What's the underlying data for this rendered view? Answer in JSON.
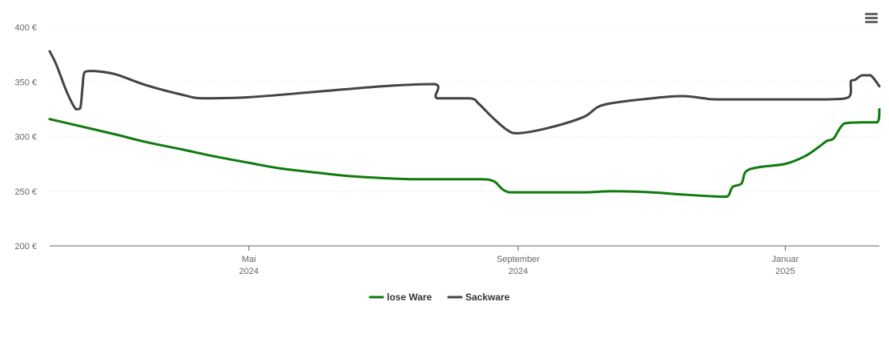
{
  "chart_data": {
    "type": "line",
    "ylim": [
      200,
      400
    ],
    "y_ticks": [
      {
        "value": 200,
        "label": "200 €"
      },
      {
        "value": 250,
        "label": "250 €"
      },
      {
        "value": 300,
        "label": "300 €"
      },
      {
        "value": 350,
        "label": "350 €"
      },
      {
        "value": 400,
        "label": "400 €"
      }
    ],
    "xlim": [
      "2024-01-31",
      "2025-02-13"
    ],
    "x_ticks": [
      {
        "date": "2024-05-01",
        "month": "Mai",
        "year": "2024"
      },
      {
        "date": "2024-09-01",
        "month": "September",
        "year": "2024"
      },
      {
        "date": "2025-01-01",
        "month": "Januar",
        "year": "2025"
      }
    ],
    "grid": true,
    "legend_position": "bottom-center",
    "series": [
      {
        "name": "lose Ware",
        "color": "#0f7a0f",
        "points": [
          [
            "2024-01-31",
            316
          ],
          [
            "2024-02-15",
            309
          ],
          [
            "2024-03-01",
            302
          ],
          [
            "2024-03-15",
            295
          ],
          [
            "2024-04-01",
            288
          ],
          [
            "2024-04-15",
            282
          ],
          [
            "2024-05-01",
            276
          ],
          [
            "2024-05-15",
            271
          ],
          [
            "2024-06-01",
            267
          ],
          [
            "2024-06-15",
            264
          ],
          [
            "2024-07-01",
            262
          ],
          [
            "2024-07-15",
            261
          ],
          [
            "2024-08-01",
            261
          ],
          [
            "2024-08-15",
            261
          ],
          [
            "2024-08-21",
            259
          ],
          [
            "2024-08-28",
            249
          ],
          [
            "2024-09-15",
            249
          ],
          [
            "2024-10-01",
            249
          ],
          [
            "2024-10-15",
            250
          ],
          [
            "2024-11-01",
            249
          ],
          [
            "2024-11-15",
            247
          ],
          [
            "2024-12-03",
            245
          ],
          [
            "2024-12-06",
            246
          ],
          [
            "2024-12-08",
            254
          ],
          [
            "2024-12-12",
            257
          ],
          [
            "2024-12-14",
            268
          ],
          [
            "2024-12-20",
            272
          ],
          [
            "2025-01-01",
            275
          ],
          [
            "2025-01-10",
            282
          ],
          [
            "2025-01-16",
            290
          ],
          [
            "2025-01-20",
            296
          ],
          [
            "2025-01-23",
            298
          ],
          [
            "2025-01-28",
            312
          ],
          [
            "2025-02-05",
            313
          ],
          [
            "2025-02-12",
            313
          ],
          [
            "2025-02-13",
            325
          ]
        ]
      },
      {
        "name": "Sackware",
        "color": "#444444",
        "points": [
          [
            "2024-01-31",
            378
          ],
          [
            "2024-02-03",
            366
          ],
          [
            "2024-02-08",
            340
          ],
          [
            "2024-02-12",
            325
          ],
          [
            "2024-02-14",
            326
          ],
          [
            "2024-02-15",
            345
          ],
          [
            "2024-02-16",
            359
          ],
          [
            "2024-02-20",
            360
          ],
          [
            "2024-03-01",
            357
          ],
          [
            "2024-03-15",
            347
          ],
          [
            "2024-04-01",
            338
          ],
          [
            "2024-04-10",
            335
          ],
          [
            "2024-05-01",
            336
          ],
          [
            "2024-06-01",
            341
          ],
          [
            "2024-07-01",
            346
          ],
          [
            "2024-07-25",
            348
          ],
          [
            "2024-07-26",
            335
          ],
          [
            "2024-08-10",
            335
          ],
          [
            "2024-08-14",
            330
          ],
          [
            "2024-08-20",
            318
          ],
          [
            "2024-08-27",
            306
          ],
          [
            "2024-09-01",
            303
          ],
          [
            "2024-09-15",
            308
          ],
          [
            "2024-10-01",
            318
          ],
          [
            "2024-10-10",
            329
          ],
          [
            "2024-11-01",
            335
          ],
          [
            "2024-11-15",
            337
          ],
          [
            "2024-11-25",
            335
          ],
          [
            "2024-12-01",
            334
          ],
          [
            "2025-01-01",
            334
          ],
          [
            "2025-01-20",
            334
          ],
          [
            "2025-01-30",
            336
          ],
          [
            "2025-01-31",
            351
          ],
          [
            "2025-02-02",
            352
          ],
          [
            "2025-02-05",
            356
          ],
          [
            "2025-02-09",
            356
          ],
          [
            "2025-02-13",
            346
          ]
        ]
      }
    ]
  },
  "ui": {
    "menu_icon": "hamburger-menu-icon"
  }
}
